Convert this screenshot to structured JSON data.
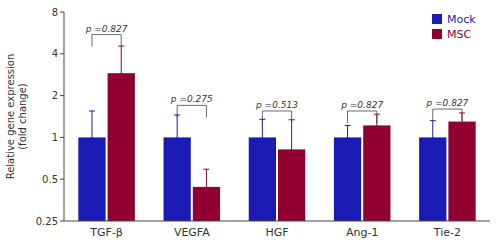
{
  "chart_data": {
    "type": "bar",
    "categories": [
      "TGF-β",
      "VEGFA",
      "HGF",
      "Ang-1",
      "Tie-2"
    ],
    "series": [
      {
        "name": "Mock",
        "color": "#1a1ab5",
        "values": [
          1.0,
          1.0,
          1.0,
          1.0,
          1.0
        ],
        "errors": [
          0.55,
          0.45,
          0.35,
          0.22,
          0.32
        ]
      },
      {
        "name": "MSC",
        "color": "#900030",
        "values": [
          2.9,
          0.44,
          0.82,
          1.22,
          1.3
        ],
        "errors": [
          1.65,
          0.15,
          0.52,
          0.25,
          0.2
        ]
      }
    ],
    "ylabel": "Relative gene expression\n(fold change)",
    "ylim": [
      0.25,
      8
    ],
    "yticks": [
      0.25,
      0.5,
      1,
      2,
      4,
      8
    ],
    "log": "y",
    "grid": false,
    "legend": "upper right",
    "annotations": [
      {
        "text": "p =0.827",
        "y": 5.5,
        "y_end": 4.51
      },
      {
        "text": "p =0.275",
        "y": 1.7,
        "y_end": 1.394
      },
      {
        "text": "p =0.513",
        "y": 1.55,
        "y_end": 1.271
      },
      {
        "text": "p =0.827",
        "y": 1.55,
        "y_end": 1.271
      },
      {
        "text": "p =0.827",
        "y": 1.6,
        "y_end": 1.312
      }
    ]
  }
}
